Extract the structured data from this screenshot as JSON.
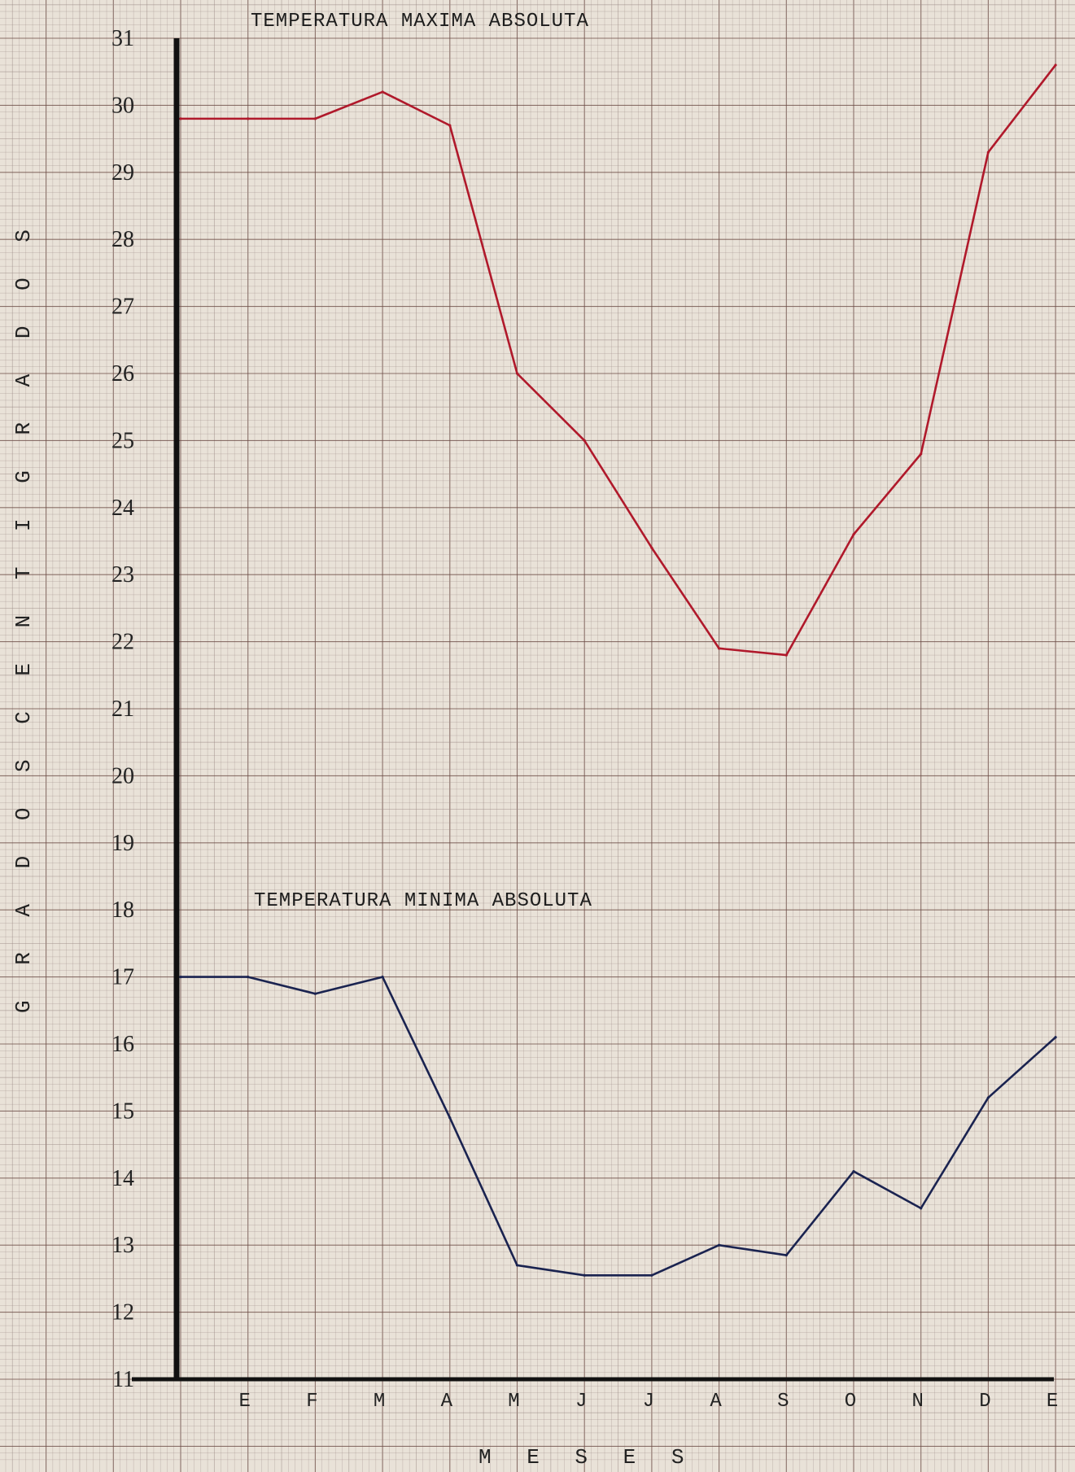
{
  "chart_data": [
    {
      "type": "line",
      "title": "TEMPERATURA MAXIMA ABSOLUTA",
      "xlabel": "M E S E S",
      "ylabel": "G R A D O S     C E N T I G R A D O S",
      "categories": [
        "",
        "E",
        "F",
        "M",
        "A",
        "M",
        "J",
        "J",
        "A",
        "S",
        "O",
        "N",
        "D",
        "E"
      ],
      "ylim": [
        11,
        31
      ],
      "yticks": [
        "11",
        "12",
        "13",
        "14",
        "15",
        "16",
        "17",
        "18",
        "19",
        "20",
        "21",
        "22",
        "23",
        "24",
        "25",
        "26",
        "27",
        "28",
        "29",
        "30",
        "31"
      ],
      "grid": true,
      "series": [
        {
          "color": "#b0192b",
          "values": [
            29.8,
            29.8,
            29.8,
            30.2,
            29.7,
            26.0,
            25.0,
            23.4,
            21.9,
            21.8,
            23.6,
            24.8,
            29.3,
            30.6
          ]
        }
      ]
    },
    {
      "type": "line",
      "title": "TEMPERATURA MINIMA ABSOLUTA",
      "categories": [
        "",
        "E",
        "F",
        "M",
        "A",
        "M",
        "J",
        "J",
        "A",
        "S",
        "O",
        "N",
        "D",
        "E"
      ],
      "ylim": [
        11,
        31
      ],
      "series": [
        {
          "color": "#1a2350",
          "values": [
            17.0,
            17.0,
            16.75,
            17.0,
            14.9,
            12.7,
            12.55,
            12.55,
            13.0,
            12.85,
            14.1,
            13.55,
            15.2,
            16.1
          ]
        }
      ]
    }
  ]
}
